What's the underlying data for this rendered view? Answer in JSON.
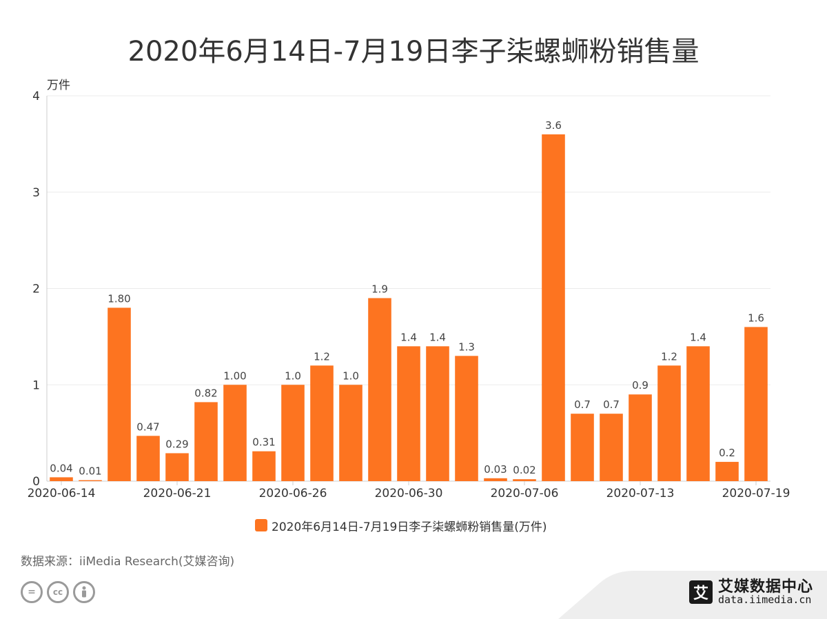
{
  "title": "2020年6月14日-7月19日李子柒螺蛳粉销售量",
  "legend": {
    "label": "2020年6月14日-7月19日李子柒螺蛳粉销售量(万件)",
    "color": "#fd7420"
  },
  "source": "数据来源：iiMedia Research(艾媒咨询)",
  "brand": {
    "name": "艾媒数据中心",
    "url": "data.iimedia.cn",
    "logo_char": "艾"
  },
  "cc_icons": [
    "equals-icon",
    "cc-icon",
    "person-icon"
  ],
  "chart_data": {
    "type": "bar",
    "y_unit_label": "万件",
    "ylim": [
      0,
      4
    ],
    "yticks": [
      0,
      1,
      2,
      3,
      4
    ],
    "bar_color": "#fd7420",
    "grid": true,
    "legend_position": "bottom",
    "x_tick_labels": [
      {
        "index": 0,
        "label": "2020-06-14"
      },
      {
        "index": 4,
        "label": "2020-06-21"
      },
      {
        "index": 8,
        "label": "2020-06-26"
      },
      {
        "index": 12,
        "label": "2020-06-30"
      },
      {
        "index": 16,
        "label": "2020-07-06"
      },
      {
        "index": 20,
        "label": "2020-07-13"
      },
      {
        "index": 24,
        "label": "2020-07-19"
      }
    ],
    "values": [
      0.04,
      0.01,
      1.8,
      0.47,
      0.29,
      0.82,
      1.0,
      0.31,
      1.0,
      1.2,
      1.0,
      1.9,
      1.4,
      1.4,
      1.3,
      0.03,
      0.02,
      3.6,
      0.7,
      0.7,
      0.9,
      1.2,
      1.4,
      0.2,
      1.6
    ],
    "value_labels": [
      "0.04",
      "0.01",
      "1.80",
      "0.47",
      "0.29",
      "0.82",
      "1.00",
      "0.31",
      "1.0",
      "1.2",
      "1.0",
      "1.9",
      "1.4",
      "1.4",
      "1.3",
      "0.03",
      "0.02",
      "3.6",
      "0.7",
      "0.7",
      "0.9",
      "1.2",
      "1.4",
      "0.2",
      "1.6"
    ]
  }
}
